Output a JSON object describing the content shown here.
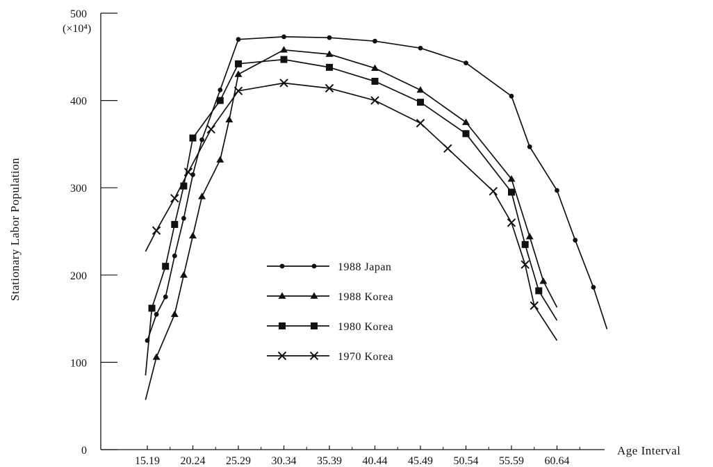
{
  "chart_data": {
    "type": "line",
    "title": "",
    "xlabel": "Age Interval",
    "ylabel": "Stationary Labor Population",
    "y_unit": "(×10⁴)",
    "ylim": [
      0,
      500
    ],
    "yticks": [
      0,
      100,
      200,
      300,
      400,
      500
    ],
    "x_tick_labels": [
      "15.19",
      "20.24",
      "25.29",
      "30.34",
      "35.39",
      "40.44",
      "45.49",
      "50.54",
      "55.59",
      "60.64"
    ],
    "xlim": [
      15,
      65.5
    ],
    "grid": false,
    "legend_position": "center",
    "series": [
      {
        "name": "1988 Japan",
        "marker": "circle",
        "points": [
          {
            "x": 15,
            "y": 125
          },
          {
            "x": 16,
            "y": 155
          },
          {
            "x": 17,
            "y": 175
          },
          {
            "x": 18,
            "y": 222
          },
          {
            "x": 19,
            "y": 265
          },
          {
            "x": 20,
            "y": 315
          },
          {
            "x": 21,
            "y": 355
          },
          {
            "x": 23,
            "y": 412
          },
          {
            "x": 25,
            "y": 470
          },
          {
            "x": 30,
            "y": 473
          },
          {
            "x": 35,
            "y": 472
          },
          {
            "x": 40,
            "y": 468
          },
          {
            "x": 45,
            "y": 460
          },
          {
            "x": 50,
            "y": 443
          },
          {
            "x": 55,
            "y": 405
          },
          {
            "x": 57,
            "y": 347
          },
          {
            "x": 60,
            "y": 297
          },
          {
            "x": 62,
            "y": 240
          },
          {
            "x": 64,
            "y": 186
          },
          {
            "x": 65.5,
            "y": 138
          }
        ]
      },
      {
        "name": "1988 Korea",
        "marker": "triangle",
        "points": [
          {
            "x": 14.8,
            "y": 57
          },
          {
            "x": 16,
            "y": 106
          },
          {
            "x": 18,
            "y": 155
          },
          {
            "x": 19,
            "y": 200
          },
          {
            "x": 20,
            "y": 245
          },
          {
            "x": 21,
            "y": 290
          },
          {
            "x": 23,
            "y": 332
          },
          {
            "x": 24,
            "y": 378
          },
          {
            "x": 25,
            "y": 430
          },
          {
            "x": 30,
            "y": 458
          },
          {
            "x": 35,
            "y": 453
          },
          {
            "x": 40,
            "y": 437
          },
          {
            "x": 45,
            "y": 412
          },
          {
            "x": 50,
            "y": 375
          },
          {
            "x": 55,
            "y": 310
          },
          {
            "x": 57,
            "y": 244
          },
          {
            "x": 58.5,
            "y": 193
          },
          {
            "x": 60,
            "y": 163
          }
        ]
      },
      {
        "name": "1980 Korea",
        "marker": "square",
        "points": [
          {
            "x": 14.8,
            "y": 85
          },
          {
            "x": 15.5,
            "y": 162
          },
          {
            "x": 17,
            "y": 210
          },
          {
            "x": 18,
            "y": 258
          },
          {
            "x": 19,
            "y": 302
          },
          {
            "x": 20,
            "y": 357
          },
          {
            "x": 23,
            "y": 400
          },
          {
            "x": 25,
            "y": 442
          },
          {
            "x": 30,
            "y": 447
          },
          {
            "x": 35,
            "y": 438
          },
          {
            "x": 40,
            "y": 422
          },
          {
            "x": 45,
            "y": 398
          },
          {
            "x": 50,
            "y": 362
          },
          {
            "x": 55,
            "y": 295
          },
          {
            "x": 56.5,
            "y": 235
          },
          {
            "x": 58,
            "y": 182
          },
          {
            "x": 60,
            "y": 148
          }
        ]
      },
      {
        "name": "1970 Korea",
        "marker": "cross",
        "points": [
          {
            "x": 14.8,
            "y": 227
          },
          {
            "x": 16,
            "y": 251
          },
          {
            "x": 18,
            "y": 288
          },
          {
            "x": 19.5,
            "y": 318
          },
          {
            "x": 22,
            "y": 367
          },
          {
            "x": 25,
            "y": 411
          },
          {
            "x": 30,
            "y": 420
          },
          {
            "x": 35,
            "y": 414
          },
          {
            "x": 40,
            "y": 400
          },
          {
            "x": 45,
            "y": 374
          },
          {
            "x": 48,
            "y": 345
          },
          {
            "x": 53,
            "y": 296
          },
          {
            "x": 55,
            "y": 260
          },
          {
            "x": 56.5,
            "y": 212
          },
          {
            "x": 57.5,
            "y": 165
          },
          {
            "x": 60,
            "y": 125
          }
        ]
      }
    ]
  }
}
